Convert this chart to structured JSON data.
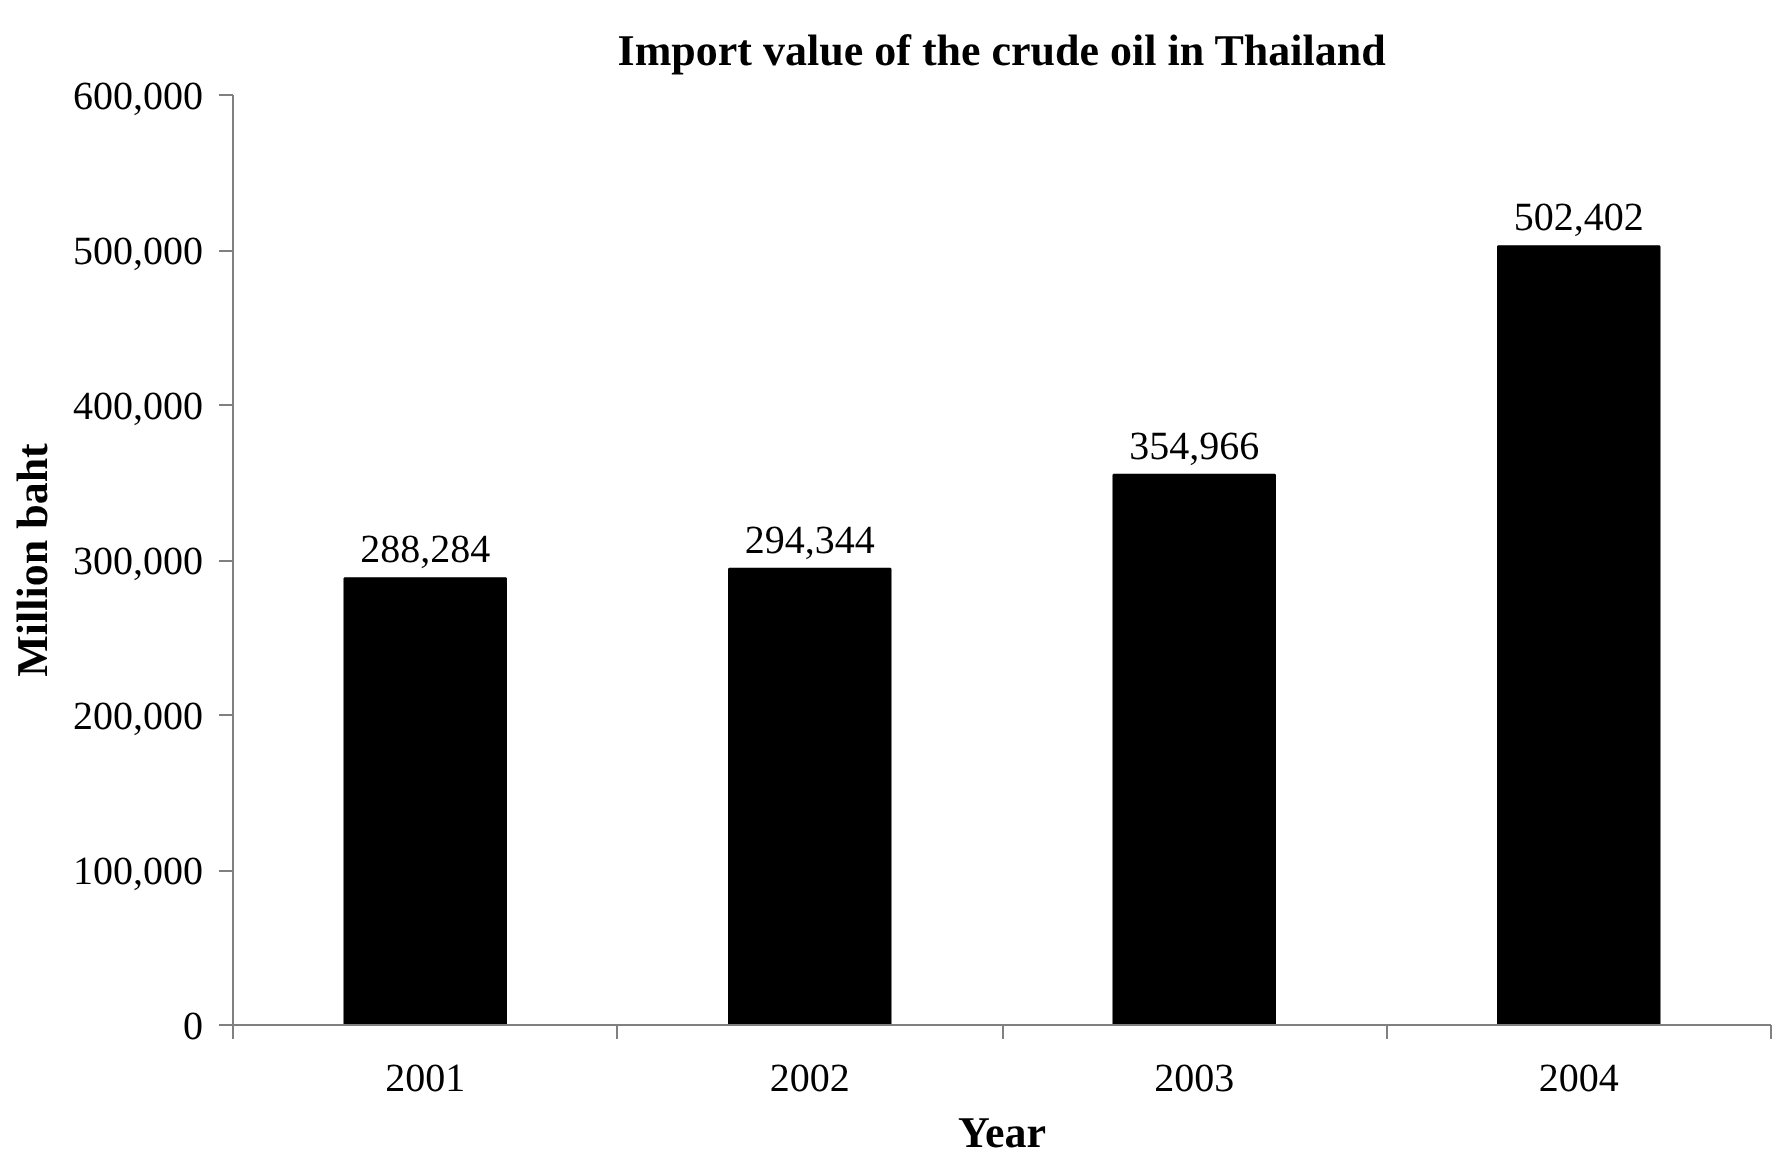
{
  "chart_data": {
    "type": "bar",
    "title": "Import value of the crude oil in Thailand",
    "xlabel": "Year",
    "ylabel": "Million baht",
    "categories": [
      "2001",
      "2002",
      "2003",
      "2004"
    ],
    "values": [
      288284,
      294344,
      354966,
      502402
    ],
    "color": "#000000",
    "ylim": [
      0,
      600000
    ],
    "yticks": [
      {
        "value": 0,
        "label": "0"
      },
      {
        "value": 100000,
        "label": "100,000"
      },
      {
        "value": 200000,
        "label": "200,000"
      },
      {
        "value": 300000,
        "label": "300,000"
      },
      {
        "value": 400000,
        "label": "400,000"
      },
      {
        "value": 500000,
        "label": "500,000"
      },
      {
        "value": 600000,
        "label": "600,000"
      }
    ],
    "value_labels": [
      "288,284",
      "294,344",
      "354,966",
      "502,402"
    ],
    "grid": false
  }
}
